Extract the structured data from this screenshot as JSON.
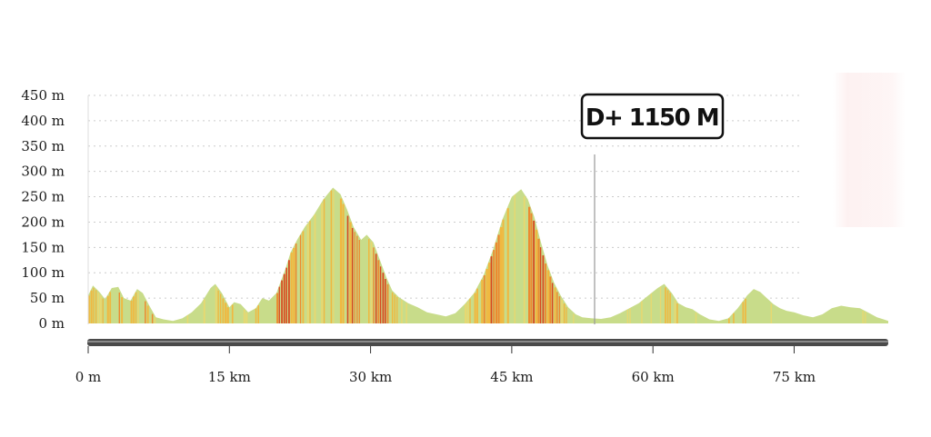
{
  "chart_data": {
    "type": "area",
    "title": "",
    "xlabel": "",
    "ylabel": "",
    "ylim": [
      0,
      450
    ],
    "xlim": [
      0,
      85
    ],
    "y_ticks": [
      0,
      50,
      100,
      150,
      200,
      250,
      300,
      350,
      400,
      450
    ],
    "y_tick_labels": [
      "0 m",
      "50 m",
      "100 m",
      "150 m",
      "200 m",
      "250 m",
      "300 m",
      "350 m",
      "400 m",
      "450 m"
    ],
    "x_ticks": [
      0,
      15,
      30,
      45,
      60,
      75
    ],
    "x_tick_labels": [
      "0 m",
      "15 km",
      "30 km",
      "45 km",
      "60 km",
      "75 km"
    ],
    "grid": "horizontal-dotted",
    "cursor_km": 53.8,
    "badge": "D+ 1150 M",
    "elevation_profile": {
      "x_km": [
        0,
        0.5,
        1.2,
        1.8,
        2.5,
        3.2,
        3.8,
        4.5,
        5.2,
        5.8,
        6.5,
        7.2,
        8,
        9,
        10,
        11,
        12,
        13,
        13.5,
        14.2,
        15,
        15.5,
        16.2,
        17,
        17.8,
        18.5,
        19.2,
        20,
        20.5,
        21,
        21.5,
        22.2,
        23,
        24,
        25,
        26,
        26.8,
        27.5,
        28.2,
        29,
        29.6,
        30.3,
        31,
        31.7,
        32.3,
        33,
        34,
        35,
        36,
        37,
        38,
        39,
        40,
        41,
        42,
        43,
        44,
        45,
        46,
        46.7,
        47.4,
        48.1,
        48.8,
        49.5,
        50.2,
        51,
        51.8,
        52.5,
        53.5,
        54.5,
        55.5,
        56.5,
        57.5,
        58.5,
        59.5,
        60.5,
        61.2,
        62,
        62.7,
        63.5,
        64.2,
        65,
        66,
        67,
        68,
        69,
        70,
        70.7,
        71.4,
        72.1,
        72.8,
        73.5,
        74.2,
        75,
        76,
        77,
        78,
        79,
        80,
        81,
        82,
        83,
        83.8,
        84.5,
        85
      ],
      "elevation_m": [
        55,
        75,
        62,
        48,
        70,
        72,
        50,
        45,
        68,
        60,
        35,
        12,
        8,
        5,
        10,
        22,
        40,
        70,
        78,
        60,
        32,
        42,
        38,
        22,
        30,
        50,
        45,
        60,
        85,
        110,
        140,
        165,
        190,
        215,
        245,
        268,
        255,
        225,
        190,
        165,
        175,
        160,
        125,
        90,
        65,
        52,
        40,
        32,
        22,
        18,
        14,
        20,
        38,
        60,
        95,
        145,
        205,
        250,
        265,
        245,
        210,
        160,
        115,
        80,
        55,
        32,
        18,
        12,
        10,
        9,
        12,
        20,
        30,
        40,
        55,
        70,
        78,
        60,
        40,
        32,
        28,
        18,
        8,
        5,
        10,
        30,
        55,
        68,
        62,
        50,
        38,
        30,
        25,
        22,
        16,
        12,
        18,
        30,
        35,
        32,
        30,
        20,
        12,
        8,
        5
      ]
    },
    "colors": {
      "base": "#c8dc8a",
      "light_yellow": "#e8d870",
      "yellow": "#f0b840",
      "orange": "#ec8a30",
      "red": "#d84820",
      "grid": "#cccccc",
      "axis_bar": "#555555",
      "cursor": "#999999"
    }
  }
}
